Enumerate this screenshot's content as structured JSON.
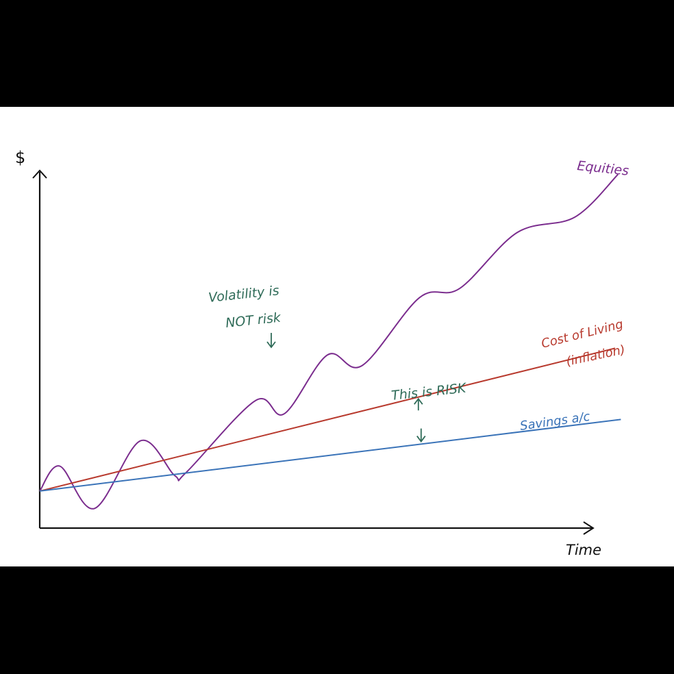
{
  "chart_data": {
    "type": "line",
    "title": "",
    "xlabel": "Time",
    "ylabel": "$",
    "x_range": [
      0,
      10
    ],
    "y_range": [
      0,
      10
    ],
    "grid": false,
    "series": [
      {
        "name": "Equities",
        "color": "#7b2d8e",
        "x": [
          0,
          0.35,
          0.95,
          1.75,
          2.35,
          2.55,
          3.75,
          4.25,
          5.0,
          5.6,
          6.6,
          7.3,
          8.3,
          9.3,
          10.05
        ],
        "y": [
          1.04,
          1.74,
          0.55,
          2.45,
          1.47,
          1.57,
          3.58,
          3.21,
          4.86,
          4.56,
          6.47,
          6.73,
          8.3,
          8.73,
          9.93
        ]
      },
      {
        "name": "Cost of living (inflation)",
        "color": "#b83a2e",
        "x": [
          0,
          10.0
        ],
        "y": [
          1.04,
          5.05
        ]
      },
      {
        "name": "Savings a/c",
        "color": "#3a73b8",
        "x": [
          0,
          10.1
        ],
        "y": [
          1.04,
          3.05
        ]
      }
    ],
    "annotations": [
      {
        "id": "volatility",
        "lines": [
          "Volatility is",
          "NOT risk"
        ],
        "color": "#2f6b58"
      },
      {
        "id": "risk",
        "lines": [
          "This is RISK"
        ],
        "color": "#2f6b58"
      }
    ],
    "labels": {
      "equities": "Equities",
      "cost_line1": "Cost of Living",
      "cost_line2": "(inflation)",
      "savings": "Savings a/c"
    },
    "arrow_x": 6.7
  }
}
